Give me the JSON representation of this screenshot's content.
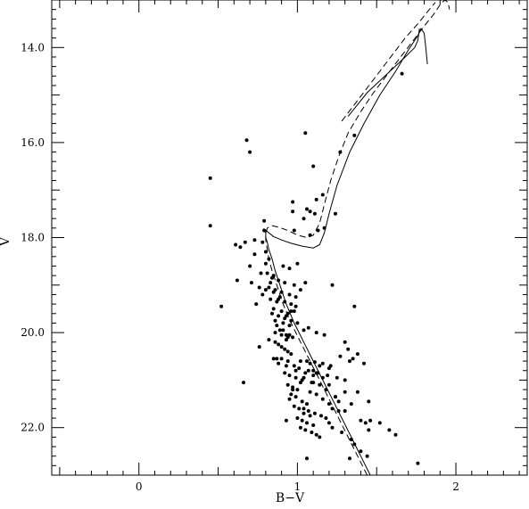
{
  "chart_data": {
    "type": "scatter",
    "title": "",
    "xlabel": "B−V",
    "ylabel": "V",
    "xlim": [
      -0.55,
      2.45
    ],
    "ylim": [
      23.0,
      13.0
    ],
    "y_inverted": true,
    "xticks": [
      0,
      1,
      2
    ],
    "xtick_labels": [
      "0",
      "1",
      "2"
    ],
    "yticks": [
      14.0,
      16.0,
      18.0,
      20.0,
      22.0
    ],
    "ytick_labels": [
      "14.0",
      "16.0",
      "18.0",
      "20.0",
      "22.0"
    ],
    "grid": false,
    "legend": "none",
    "points": {
      "x": [
        0.68,
        0.7,
        1.05,
        0.97,
        1.17,
        0.45,
        0.45,
        0.52,
        0.73,
        0.7,
        0.82,
        0.85,
        0.61,
        0.64,
        0.67,
        0.79,
        0.97,
        0.98,
        1.04,
        1.08,
        1.11,
        1.12,
        1.1,
        1.16,
        1.24,
        1.27,
        1.36,
        1.66,
        1.13,
        1.06,
        1.08,
        0.79,
        0.62,
        0.71,
        0.76,
        0.78,
        0.74,
        0.8,
        0.83,
        0.87,
        0.81,
        0.84,
        0.88,
        0.92,
        0.85,
        0.9,
        0.94,
        0.86,
        0.91,
        0.95,
        0.89,
        0.93,
        0.97,
        0.88,
        0.92,
        0.96,
        0.9,
        0.94,
        0.98,
        0.92,
        0.95,
        0.99,
        1.02,
        0.94,
        0.97,
        1.0,
        0.96,
        0.99,
        1.03,
        1.06,
        0.98,
        1.01,
        1.04,
        1.08,
        1.0,
        1.03,
        1.06,
        1.1,
        1.02,
        1.05,
        1.09,
        1.12,
        1.14,
        1.04,
        1.07,
        1.11,
        1.15,
        1.18,
        1.08,
        1.12,
        1.16,
        1.2,
        1.22,
        1.1,
        1.14,
        1.18,
        1.24,
        1.26,
        1.3,
        1.2,
        1.22,
        1.28,
        1.34,
        1.36,
        1.4,
        1.46,
        1.52,
        1.58,
        1.62,
        1.44,
        1.06,
        0.93,
        0.87,
        0.76,
        0.82,
        0.86,
        0.9,
        0.94,
        0.98,
        0.84,
        0.88,
        0.92,
        0.96,
        1.0,
        1.04,
        0.86,
        0.9,
        0.94,
        0.98,
        0.82,
        0.86,
        0.9,
        0.95,
        0.99,
        0.88,
        0.92,
        0.96,
        1.0,
        0.91,
        0.95,
        1.07,
        1.12,
        1.17,
        1.32,
        1.38,
        1.35,
        1.33,
        1.42,
        1.27,
        1.36,
        1.22,
        0.78,
        0.8,
        0.73,
        0.66,
        0.85,
        0.88,
        0.93,
        1.3,
        1.01,
        1.07,
        1.13,
        1.19,
        1.25,
        1.06,
        1.11,
        1.16,
        1.21,
        1.02,
        1.08,
        1.14,
        1.2,
        0.99,
        1.05,
        1.1,
        1.16,
        1.03,
        1.09,
        0.97,
        0.95,
        1.1,
        1.2,
        1.3,
        1.45,
        1.38,
        1.24,
        1.34,
        1.3,
        1.76,
        1.4,
        1.43,
        1.26,
        1.12,
        1.04,
        1.45,
        1.33,
        0.96,
        0.93,
        0.99,
        0.89,
        0.85,
        0.83,
        0.77,
        0.8,
        1.02,
        1.05,
        0.87,
        0.91,
        0.95,
        0.93
      ],
      "y": [
        15.95,
        16.2,
        15.8,
        17.25,
        17.8,
        16.75,
        17.75,
        19.45,
        18.35,
        18.6,
        18.45,
        18.8,
        18.15,
        18.2,
        18.1,
        17.65,
        17.45,
        17.85,
        17.6,
        17.45,
        17.5,
        17.2,
        16.5,
        17.1,
        17.5,
        16.2,
        15.85,
        14.55,
        17.85,
        17.4,
        17.95,
        17.85,
        18.9,
        18.95,
        19.05,
        19.2,
        19.4,
        19.1,
        19.3,
        19.35,
        18.75,
        18.85,
        18.9,
        18.95,
        19.5,
        19.55,
        19.6,
        19.75,
        19.8,
        19.85,
        19.95,
        20.05,
        20.1,
        20.25,
        20.35,
        20.45,
        20.55,
        20.6,
        20.7,
        20.85,
        20.9,
        20.95,
        21.05,
        21.1,
        21.15,
        21.2,
        21.3,
        21.35,
        21.45,
        21.5,
        21.55,
        21.6,
        21.7,
        21.75,
        21.8,
        21.85,
        21.9,
        21.95,
        22.0,
        22.05,
        22.1,
        22.15,
        22.2,
        21.6,
        21.65,
        21.7,
        21.75,
        21.8,
        21.25,
        21.3,
        21.4,
        21.5,
        21.6,
        21.05,
        21.1,
        21.2,
        21.35,
        21.45,
        21.65,
        21.9,
        22.0,
        22.1,
        22.25,
        22.35,
        22.5,
        21.85,
        21.9,
        22.05,
        22.15,
        22.6,
        22.65,
        21.85,
        20.55,
        20.3,
        20.15,
        20.2,
        20.3,
        20.4,
        19.55,
        19.6,
        19.65,
        19.7,
        19.75,
        19.8,
        19.95,
        20.0,
        20.05,
        20.1,
        19.0,
        19.05,
        19.1,
        19.15,
        19.2,
        19.25,
        19.3,
        19.35,
        19.4,
        18.55,
        18.6,
        18.65,
        19.9,
        20.0,
        20.05,
        20.35,
        20.45,
        20.55,
        20.6,
        20.65,
        20.5,
        19.45,
        19.0,
        18.1,
        18.3,
        18.05,
        21.05,
        20.55,
        20.65,
        20.7,
        20.2,
        20.75,
        20.8,
        20.85,
        20.9,
        20.95,
        20.6,
        20.62,
        20.65,
        20.7,
        20.6,
        20.65,
        20.7,
        20.75,
        20.8,
        20.85,
        20.9,
        20.95,
        21.0,
        21.05,
        21.2,
        21.4,
        20.8,
        21.1,
        21.25,
        21.45,
        21.25,
        21.35,
        21.5,
        21.0,
        22.75,
        21.85,
        21.9,
        21.65,
        20.85,
        20.95,
        22.05,
        22.65,
        19.55,
        19.65,
        19.45,
        19.25,
        19.15,
        18.95,
        18.75,
        18.55,
        19.1,
        18.95,
        19.85,
        19.95,
        20.05,
        20.15
      ]
    },
    "isochrones": [
      {
        "style": "solid",
        "x": [
          1.46,
          1.4,
          1.34,
          1.28,
          1.22,
          1.16,
          1.1,
          1.04,
          0.98,
          0.93,
          0.89,
          0.86,
          0.84,
          0.82,
          0.81,
          0.8,
          0.8,
          0.79,
          0.79,
          0.8,
          0.82,
          0.85,
          0.9,
          0.96,
          1.03,
          1.1,
          1.14,
          1.17,
          1.2,
          1.25,
          1.33,
          1.42,
          1.52,
          1.62,
          1.7,
          1.76,
          1.78,
          1.8,
          1.81,
          1.82
        ],
        "y": [
          23.0,
          22.6,
          22.2,
          21.8,
          21.4,
          21.0,
          20.6,
          20.2,
          19.8,
          19.4,
          19.0,
          18.7,
          18.45,
          18.25,
          18.1,
          18.0,
          17.9,
          17.85,
          17.82,
          17.84,
          17.9,
          17.98,
          18.05,
          18.12,
          18.18,
          18.22,
          18.15,
          17.9,
          17.5,
          16.9,
          16.2,
          15.6,
          15.0,
          14.5,
          14.05,
          13.75,
          13.6,
          13.7,
          14.0,
          14.35
        ]
      },
      {
        "style": "solid",
        "x": [
          1.32,
          1.38,
          1.44,
          1.52,
          1.6,
          1.68,
          1.74,
          1.76,
          1.77
        ],
        "y": [
          15.45,
          15.2,
          14.95,
          14.7,
          14.45,
          14.2,
          14.0,
          13.85,
          13.6
        ]
      },
      {
        "style": "dashed",
        "x": [
          1.44,
          1.38,
          1.32,
          1.26,
          1.2,
          1.14,
          1.08,
          1.02,
          0.96,
          0.91,
          0.87,
          0.84,
          0.82,
          0.81,
          0.8,
          0.8,
          0.81,
          0.84,
          0.88,
          0.94,
          1.0,
          1.06,
          1.1,
          1.14,
          1.17,
          1.21,
          1.26,
          1.32,
          1.4,
          1.48,
          1.56,
          1.64,
          1.72,
          1.8,
          1.86,
          1.9,
          1.93,
          1.95,
          1.96
        ],
        "y": [
          23.0,
          22.6,
          22.2,
          21.8,
          21.4,
          21.0,
          20.6,
          20.2,
          19.8,
          19.4,
          19.0,
          18.7,
          18.45,
          18.25,
          18.05,
          17.92,
          17.8,
          17.75,
          17.78,
          17.85,
          17.95,
          18.0,
          17.95,
          17.7,
          17.3,
          16.8,
          16.3,
          15.8,
          15.35,
          14.95,
          14.6,
          14.25,
          13.9,
          13.55,
          13.3,
          13.1,
          13.0,
          13.05,
          13.2
        ]
      },
      {
        "style": "dashed",
        "x": [
          1.28,
          1.36,
          1.44,
          1.52,
          1.6,
          1.68,
          1.76,
          1.82,
          1.87
        ],
        "y": [
          15.55,
          15.2,
          14.85,
          14.5,
          14.15,
          13.8,
          13.5,
          13.25,
          13.05
        ]
      }
    ]
  }
}
